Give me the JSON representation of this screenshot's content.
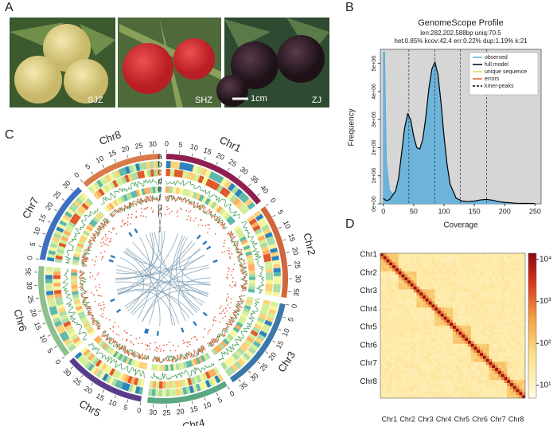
{
  "panel_labels": [
    "A",
    "B",
    "C",
    "D"
  ],
  "photos": [
    {
      "label": "SJZ"
    },
    {
      "label": "SHZ"
    },
    {
      "label": "ZJ"
    }
  ],
  "scale_bar": "1cm",
  "genomescope": {
    "type": "line",
    "title": "GenomeScope Profile",
    "subtitle": [
      "len:282,202,588bp uniq:70.5",
      "het:0.85% kcov:42.4 err:0.22% dup:1.19% k:21"
    ],
    "xlabel": "Coverage",
    "ylabel": "Frequency",
    "x": [
      0,
      2,
      5,
      10,
      15,
      20,
      25,
      30,
      35,
      40,
      45,
      50,
      55,
      60,
      65,
      70,
      75,
      80,
      85,
      90,
      95,
      100,
      105,
      110,
      120,
      130,
      140,
      150,
      160,
      170,
      180,
      190,
      200,
      220,
      250
    ],
    "series": [
      {
        "name": "observed",
        "color": "#5aaedc",
        "values": [
          5400000,
          5400000,
          1500000,
          500000,
          350000,
          450000,
          900000,
          1800000,
          2700000,
          3200000,
          3000000,
          2400000,
          2000000,
          1950000,
          2300000,
          3100000,
          4100000,
          4800000,
          5050000,
          4600000,
          3600000,
          2400000,
          1400000,
          700000,
          200000,
          100000,
          80000,
          100000,
          140000,
          160000,
          130000,
          80000,
          50000,
          20000,
          10000
        ]
      },
      {
        "name": "full model",
        "color": "#000000",
        "values": [
          200000,
          150000,
          120000,
          150000,
          300000,
          450000,
          900000,
          1800000,
          2700000,
          3200000,
          3000000,
          2400000,
          2000000,
          1950000,
          2300000,
          3100000,
          4100000,
          4800000,
          5050000,
          4600000,
          3600000,
          2400000,
          1400000,
          700000,
          200000,
          100000,
          80000,
          100000,
          140000,
          160000,
          130000,
          80000,
          50000,
          20000,
          10000
        ]
      }
    ],
    "extra_legend": [
      {
        "name": "unique sequence",
        "color": "#e8d44a"
      },
      {
        "name": "errors",
        "color": "#e0642a"
      },
      {
        "name": "kmer-peaks",
        "color": "#000000",
        "dash": true
      }
    ],
    "kmer_peaks": [
      42,
      85,
      127,
      170
    ],
    "xlim": [
      -5,
      260
    ],
    "ylim": [
      0,
      5500000
    ],
    "xticks": [
      0,
      50,
      100,
      150,
      200,
      250
    ],
    "yticks": [
      {
        "value": 0,
        "label": "0e+00"
      },
      {
        "value": 1000000,
        "label": "1e+06"
      },
      {
        "value": 2000000,
        "label": "2e+06"
      },
      {
        "value": 3000000,
        "label": "3e+06"
      },
      {
        "value": 4000000,
        "label": "4e+06"
      },
      {
        "value": 5000000,
        "label": "5e+06"
      }
    ]
  },
  "circos": {
    "track_labels": [
      "a",
      "b",
      "c",
      "d",
      "e",
      "f",
      "g",
      "h",
      "i",
      "j"
    ],
    "chromosomes": [
      {
        "name": "Chr1",
        "color": "#8e1f4e",
        "ticks": [
          0,
          5,
          10,
          15,
          20,
          25,
          30,
          35,
          40
        ]
      },
      {
        "name": "Chr2",
        "color": "#d0683c",
        "ticks": [
          0,
          5,
          10,
          15,
          20,
          25,
          30,
          35
        ]
      },
      {
        "name": "Chr3",
        "color": "#3a78a8",
        "ticks": [
          0,
          5,
          10,
          15,
          20,
          25,
          30,
          35
        ]
      },
      {
        "name": "Chr4",
        "color": "#5aa882",
        "ticks": [
          0,
          5,
          10,
          15,
          20,
          25,
          30
        ]
      },
      {
        "name": "Chr5",
        "color": "#5a3d8a",
        "ticks": [
          0,
          5,
          10,
          15,
          20,
          25,
          30
        ]
      },
      {
        "name": "Chr6",
        "color": "#8cc08c",
        "ticks": [
          0,
          5,
          10,
          15,
          20,
          25,
          30,
          35
        ]
      },
      {
        "name": "Chr7",
        "color": "#3f6fbf",
        "ticks": [
          0,
          5,
          10,
          15,
          20,
          25,
          30
        ]
      },
      {
        "name": "Chr8",
        "color": "#d87a4a",
        "ticks": [
          0,
          5,
          10,
          15,
          20,
          25,
          30
        ]
      }
    ]
  },
  "hic": {
    "labels": [
      "Chr1",
      "Chr2",
      "Chr3",
      "Chr4",
      "Chr5",
      "Chr6",
      "Chr7",
      "Chr8"
    ],
    "log": true,
    "clim": [
      5,
      14000
    ],
    "cticks": [
      {
        "value": 10,
        "label": "10¹"
      },
      {
        "value": 100,
        "label": "10²"
      },
      {
        "value": 1000,
        "label": "10³"
      },
      {
        "value": 10000,
        "label": "10⁴"
      }
    ]
  }
}
